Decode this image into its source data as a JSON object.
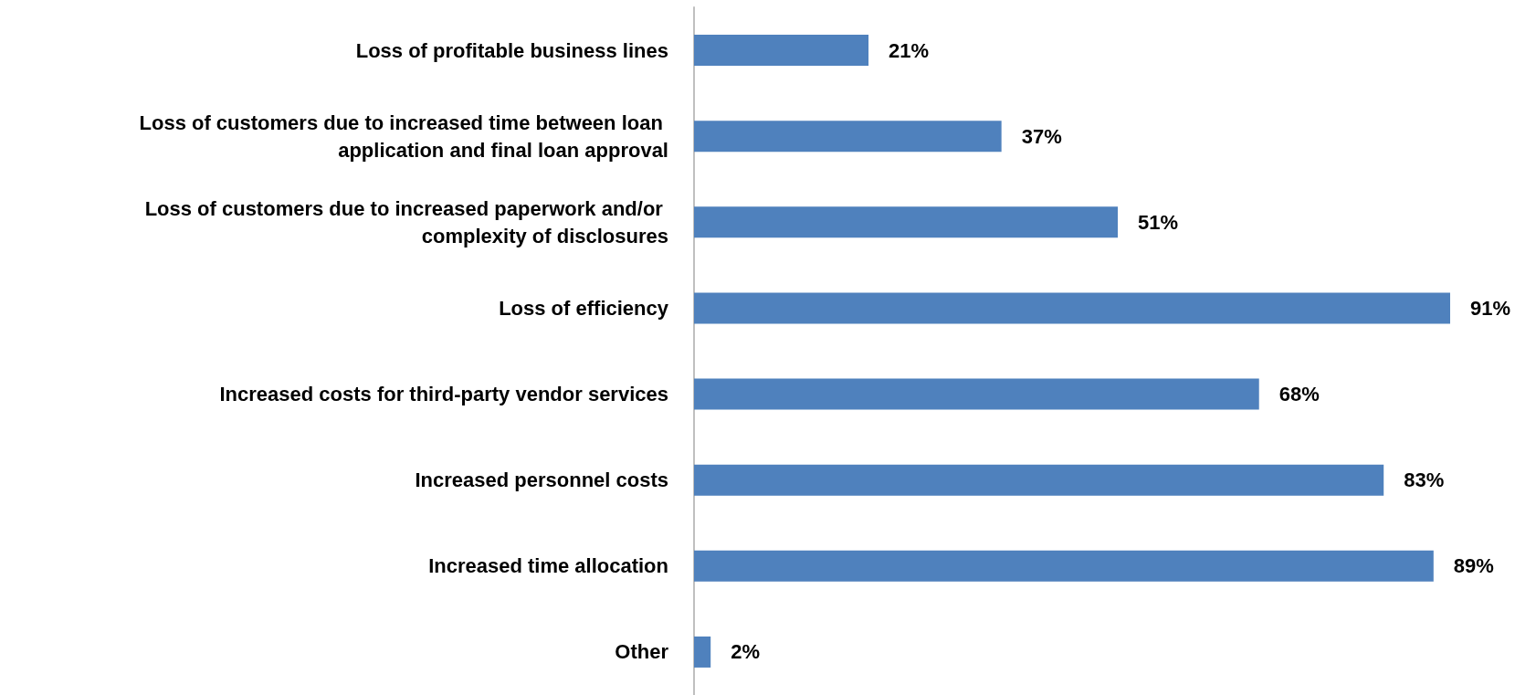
{
  "chart_data": {
    "type": "bar",
    "orientation": "horizontal",
    "categories": [
      "Loss of profitable business lines",
      "Loss of customers due to increased time between loan application and final loan approval",
      "Loss of customers due to increased paperwork and/or complexity of disclosures",
      "Loss of efficiency",
      "Increased costs for third-party vendor services",
      "Increased personnel costs",
      "Increased time allocation",
      "Other"
    ],
    "values": [
      21,
      37,
      51,
      91,
      68,
      83,
      89,
      2
    ],
    "value_labels": [
      "21%",
      "37%",
      "51%",
      "91%",
      "68%",
      "83%",
      "89%",
      "2%"
    ],
    "color": "#4f81bd",
    "grid": false
  }
}
